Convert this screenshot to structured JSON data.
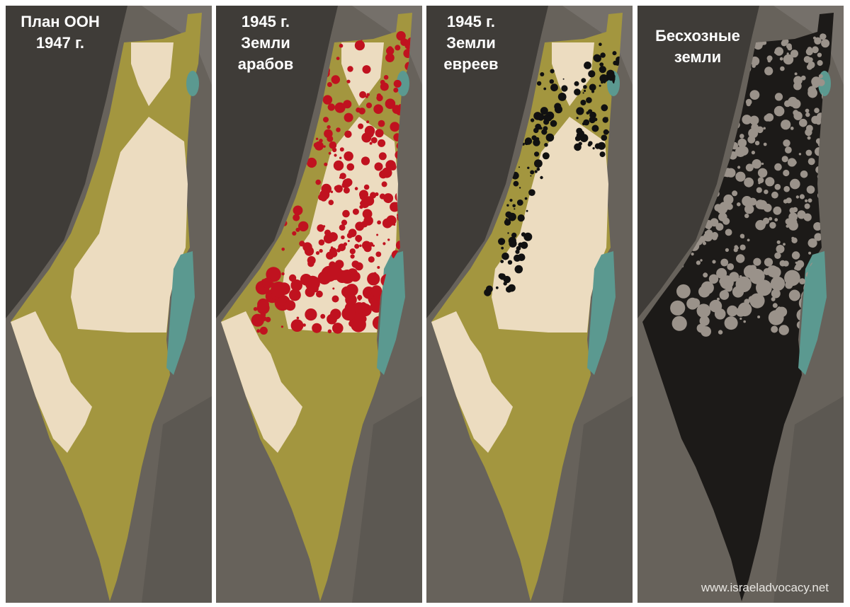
{
  "panels": [
    {
      "title_lines": [
        "План ООН",
        "1947 г."
      ]
    },
    {
      "title_lines": [
        "1945 г.",
        "Земли",
        "арабов"
      ]
    },
    {
      "title_lines": [
        "1945 г.",
        "Земли",
        "евреев"
      ]
    },
    {
      "title_lines": [
        "Бесхозные",
        "земли"
      ]
    }
  ],
  "watermark": "www.israeladvocacy.net"
}
